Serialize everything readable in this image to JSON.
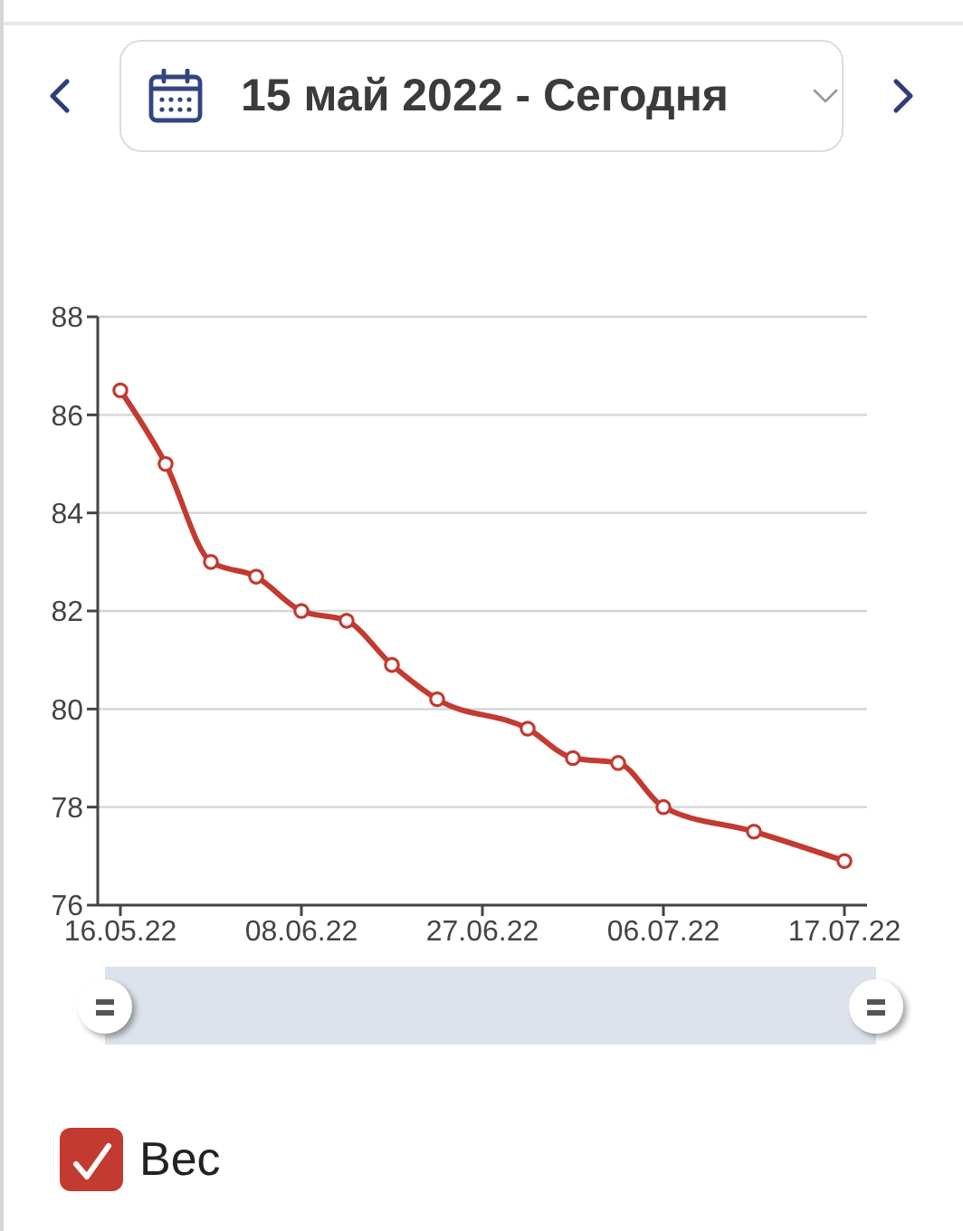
{
  "chart_data": {
    "type": "line",
    "title": "15 май 2022 - Сегодня",
    "categories": [
      "16.05.22",
      null,
      null,
      null,
      "08.06.22",
      null,
      null,
      null,
      "27.06.22",
      null,
      null,
      null,
      "06.07.22",
      null,
      null,
      null,
      "17.07.22"
    ],
    "series": [
      {
        "name": "Вес",
        "color": "#c23a30",
        "values": [
          86.5,
          85.0,
          83.0,
          82.7,
          82.0,
          81.8,
          80.9,
          80.2,
          null,
          79.6,
          79.0,
          78.9,
          78.0,
          null,
          77.5,
          null,
          76.9
        ]
      }
    ],
    "ylim": [
      76,
      88
    ],
    "yticks": [
      76,
      78,
      80,
      82,
      84,
      86,
      88
    ],
    "grid": "y",
    "legend": "bottom left",
    "marker": "circle",
    "line_style": "solid"
  }
}
